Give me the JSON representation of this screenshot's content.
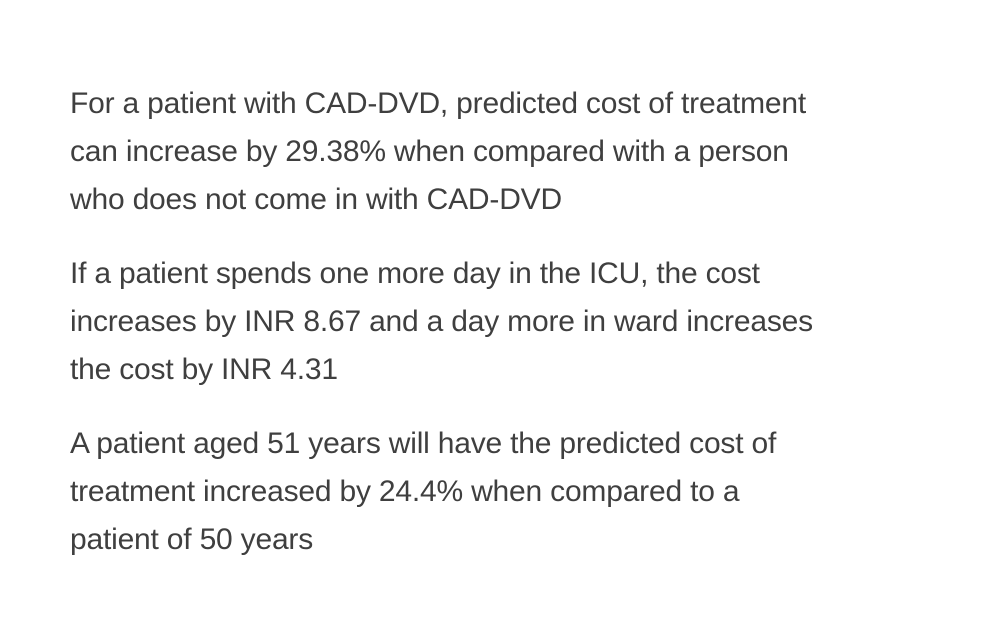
{
  "paragraphs": [
    {
      "lines": [
        "For a patient with CAD-DVD, predicted cost of treatment",
        "can increase by 29.38% when compared with a person",
        "who does not come in with CAD-DVD"
      ]
    },
    {
      "lines": [
        "If a patient spends one more day in the ICU, the cost",
        "increases by INR 8.67 and a day more in ward increases",
        "the cost by INR 4.31"
      ]
    },
    {
      "lines": [
        "A patient aged 51 years will have the predicted cost of",
        "treatment increased by 24.4% when compared to a",
        "patient of 50 years"
      ]
    }
  ]
}
